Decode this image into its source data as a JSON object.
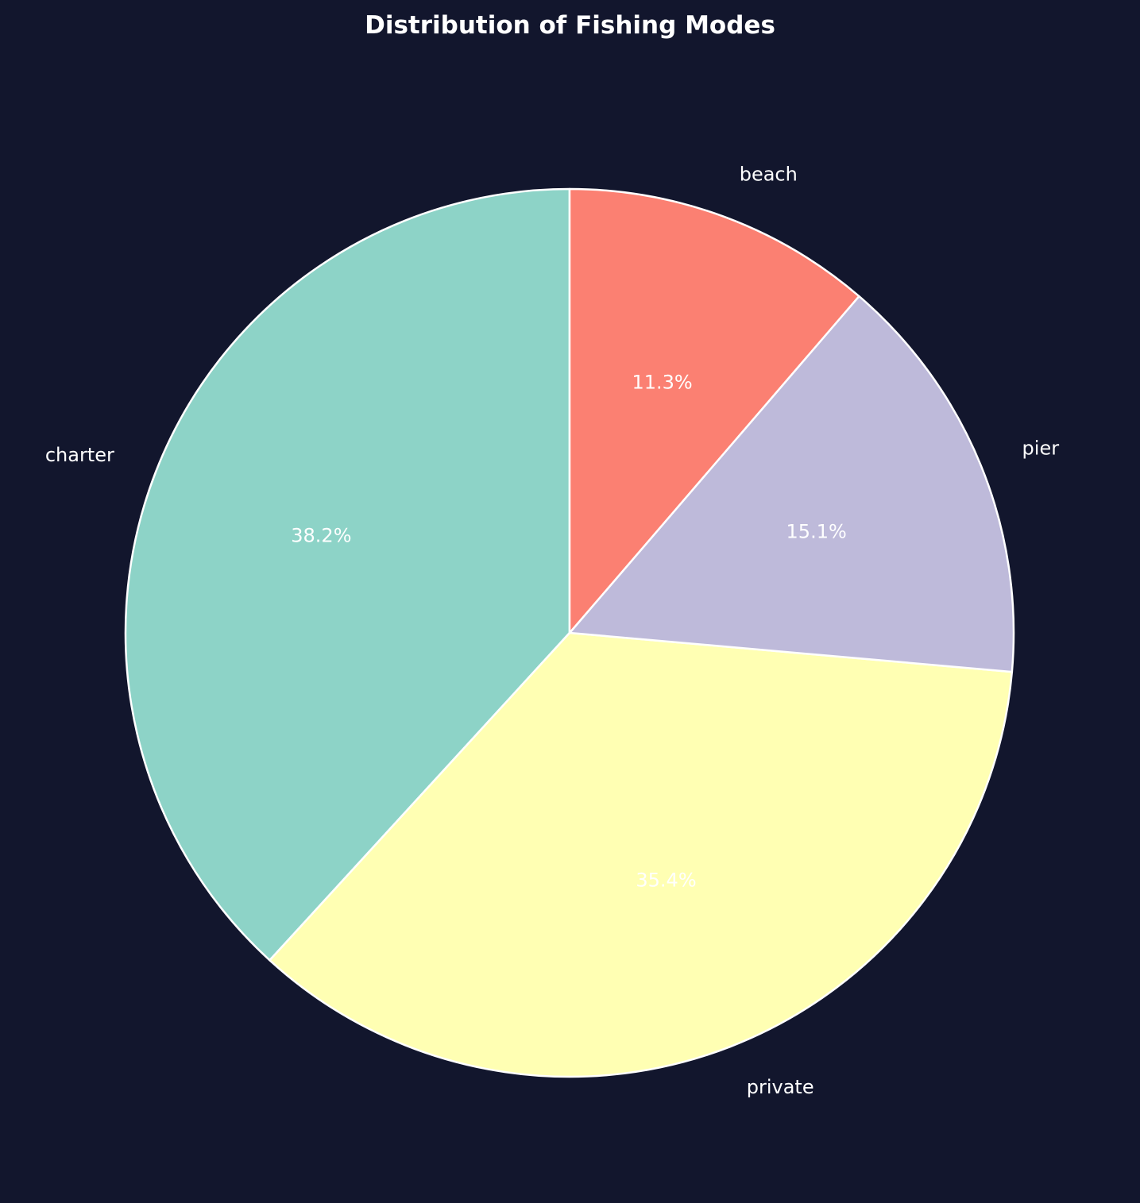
{
  "chart_data": {
    "type": "pie",
    "title": "Distribution of Fishing Modes",
    "slices": [
      {
        "label": "charter",
        "value": 38.2,
        "pct_label": "38.2%",
        "color": "#8dd3c7"
      },
      {
        "label": "private",
        "value": 35.4,
        "pct_label": "35.4%",
        "color": "#ffffb3"
      },
      {
        "label": "pier",
        "value": 15.1,
        "pct_label": "15.1%",
        "color": "#bebada"
      },
      {
        "label": "beach",
        "value": 11.3,
        "pct_label": "11.3%",
        "color": "#fb8072"
      }
    ],
    "start_angle_deg": 90,
    "direction": "counterclockwise",
    "edge_color": "#ffffff",
    "background_color": "#12162d"
  }
}
